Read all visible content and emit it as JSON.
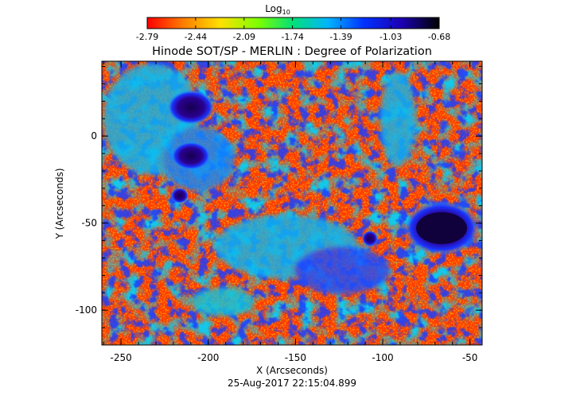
{
  "colorbar": {
    "title": "Log",
    "title_sub": "10",
    "tick_labels": [
      "-2.79",
      "-2.44",
      "-2.09",
      "-1.74",
      "-1.39",
      "-1.03",
      "-0.68"
    ],
    "range": [
      -2.79,
      -0.68
    ],
    "colormap": [
      "#ff0000",
      "#ff7a00",
      "#ffe000",
      "#7dff00",
      "#00e07a",
      "#00b4ff",
      "#0033ff",
      "#1c00b4",
      "#000000"
    ]
  },
  "title": "Hinode SOT/SP - MERLIN : Degree of Polarization",
  "x_axis": {
    "label": "X (Arcseconds)",
    "range": [
      -261,
      -43
    ],
    "tick_labels": [
      "-250",
      "-200",
      "-150",
      "-100",
      "-50"
    ]
  },
  "y_axis": {
    "label": "Y (Arcseconds)",
    "range": [
      -120,
      43
    ],
    "tick_labels": [
      "0",
      "-50",
      "-100"
    ]
  },
  "timestamp": "25-Aug-2017 22:15:04.899"
}
